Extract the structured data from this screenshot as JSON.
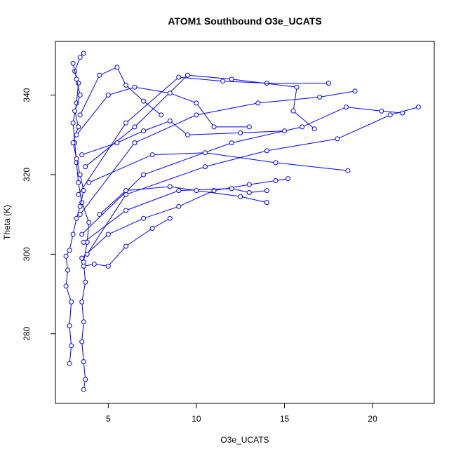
{
  "chart_data": {
    "type": "scatter",
    "title": "ATOM1 Southbound O3e_UCATS",
    "xlabel": "O3e_UCATS",
    "ylabel": "Theta (K)",
    "xlim": [
      2.0,
      23.5
    ],
    "ylim": [
      262.5,
      353.5
    ],
    "xticks": [
      5,
      10,
      15,
      20
    ],
    "yticks": [
      280,
      300,
      320,
      340
    ],
    "color": "#0000ff",
    "marker": "open-circle",
    "connected": true,
    "series": [
      {
        "values": [
          {
            "x": 3.6,
            "y": 266.0
          },
          {
            "x": 3.7,
            "y": 268.5
          },
          {
            "x": 3.6,
            "y": 273.0
          },
          {
            "x": 3.5,
            "y": 278.0
          },
          {
            "x": 3.6,
            "y": 283.0
          },
          {
            "x": 3.5,
            "y": 288.0
          },
          {
            "x": 3.7,
            "y": 293.0
          },
          {
            "x": 3.6,
            "y": 298.0
          },
          {
            "x": 3.8,
            "y": 303.0
          },
          {
            "x": 3.9,
            "y": 308.0
          },
          {
            "x": 3.5,
            "y": 313.0
          },
          {
            "x": 3.3,
            "y": 318.0
          },
          {
            "x": 3.2,
            "y": 323.0
          },
          {
            "x": 3.1,
            "y": 328.0
          },
          {
            "x": 3.0,
            "y": 333.0
          },
          {
            "x": 3.2,
            "y": 338.0
          },
          {
            "x": 3.3,
            "y": 343.0
          },
          {
            "x": 3.1,
            "y": 346.0
          },
          {
            "x": 3.4,
            "y": 349.5
          },
          {
            "x": 3.6,
            "y": 350.5
          }
        ]
      },
      {
        "values": [
          {
            "x": 2.8,
            "y": 272.5
          },
          {
            "x": 2.9,
            "y": 277.0
          },
          {
            "x": 2.8,
            "y": 282.0
          },
          {
            "x": 2.9,
            "y": 288.0
          },
          {
            "x": 2.6,
            "y": 292.0
          },
          {
            "x": 2.7,
            "y": 296.0
          },
          {
            "x": 2.6,
            "y": 299.5
          },
          {
            "x": 2.8,
            "y": 301.0
          },
          {
            "x": 3.0,
            "y": 305.0
          },
          {
            "x": 3.2,
            "y": 309.0
          },
          {
            "x": 3.4,
            "y": 312.0
          },
          {
            "x": 3.6,
            "y": 316.0
          },
          {
            "x": 3.4,
            "y": 320.0
          },
          {
            "x": 3.2,
            "y": 324.0
          },
          {
            "x": 3.0,
            "y": 328.0
          },
          {
            "x": 3.3,
            "y": 332.0
          },
          {
            "x": 3.1,
            "y": 336.0
          },
          {
            "x": 3.4,
            "y": 340.0
          },
          {
            "x": 3.2,
            "y": 344.0
          },
          {
            "x": 3.0,
            "y": 348.0
          }
        ]
      },
      {
        "values": [
          {
            "x": 3.5,
            "y": 299.0
          },
          {
            "x": 5.0,
            "y": 305.0
          },
          {
            "x": 7.0,
            "y": 309.0
          },
          {
            "x": 9.0,
            "y": 312.0
          },
          {
            "x": 11.0,
            "y": 316.0
          },
          {
            "x": 13.0,
            "y": 317.5
          },
          {
            "x": 14.5,
            "y": 318.5
          },
          {
            "x": 15.2,
            "y": 319.0
          }
        ]
      },
      {
        "values": [
          {
            "x": 3.6,
            "y": 303.0
          },
          {
            "x": 6.0,
            "y": 311.0
          },
          {
            "x": 9.0,
            "y": 316.0
          },
          {
            "x": 12.0,
            "y": 316.5
          },
          {
            "x": 13.0,
            "y": 315.5
          },
          {
            "x": 14.0,
            "y": 316.0
          }
        ]
      },
      {
        "values": [
          {
            "x": 3.8,
            "y": 300.0
          },
          {
            "x": 6.0,
            "y": 315.0
          },
          {
            "x": 10.5,
            "y": 322.0
          },
          {
            "x": 14.0,
            "y": 326.0
          },
          {
            "x": 18.0,
            "y": 329.0
          },
          {
            "x": 21.0,
            "y": 335.0
          },
          {
            "x": 22.6,
            "y": 337.0
          }
        ]
      },
      {
        "values": [
          {
            "x": 3.5,
            "y": 305.0
          },
          {
            "x": 7.0,
            "y": 320.0
          },
          {
            "x": 12.0,
            "y": 328.0
          },
          {
            "x": 16.0,
            "y": 332.0
          },
          {
            "x": 18.5,
            "y": 337.0
          },
          {
            "x": 20.5,
            "y": 336.0
          },
          {
            "x": 21.7,
            "y": 335.5
          }
        ]
      },
      {
        "values": [
          {
            "x": 3.4,
            "y": 310.0
          },
          {
            "x": 6.5,
            "y": 328.0
          },
          {
            "x": 10.0,
            "y": 335.0
          },
          {
            "x": 13.5,
            "y": 338.0
          },
          {
            "x": 17.0,
            "y": 339.5
          },
          {
            "x": 19.0,
            "y": 341.0
          }
        ]
      },
      {
        "values": [
          {
            "x": 3.3,
            "y": 315.0
          },
          {
            "x": 6.0,
            "y": 333.0
          },
          {
            "x": 9.0,
            "y": 344.5
          },
          {
            "x": 11.5,
            "y": 343.5
          },
          {
            "x": 14.0,
            "y": 343.0
          },
          {
            "x": 17.5,
            "y": 343.0
          }
        ]
      },
      {
        "values": [
          {
            "x": 3.9,
            "y": 318.0
          },
          {
            "x": 7.5,
            "y": 325.0
          },
          {
            "x": 10.5,
            "y": 325.5
          },
          {
            "x": 14.5,
            "y": 323.0
          },
          {
            "x": 18.6,
            "y": 321.0
          }
        ]
      },
      {
        "values": [
          {
            "x": 4.5,
            "y": 310.0
          },
          {
            "x": 6.0,
            "y": 316.0
          },
          {
            "x": 8.5,
            "y": 317.0
          },
          {
            "x": 10.0,
            "y": 316.0
          },
          {
            "x": 12.5,
            "y": 314.5
          },
          {
            "x": 14.0,
            "y": 313.0
          }
        ]
      },
      {
        "values": [
          {
            "x": 3.7,
            "y": 322.0
          },
          {
            "x": 6.5,
            "y": 332.0
          },
          {
            "x": 9.5,
            "y": 345.0
          },
          {
            "x": 12.0,
            "y": 344.0
          },
          {
            "x": 15.7,
            "y": 342.0
          },
          {
            "x": 15.5,
            "y": 336.0
          },
          {
            "x": 16.7,
            "y": 331.5
          }
        ]
      },
      {
        "values": [
          {
            "x": 3.2,
            "y": 330.0
          },
          {
            "x": 5.0,
            "y": 340.0
          },
          {
            "x": 6.5,
            "y": 342.0
          },
          {
            "x": 8.5,
            "y": 340.5
          },
          {
            "x": 10.0,
            "y": 338.0
          },
          {
            "x": 11.0,
            "y": 332.0
          },
          {
            "x": 13.0,
            "y": 332.0
          }
        ]
      },
      {
        "values": [
          {
            "x": 3.5,
            "y": 325.0
          },
          {
            "x": 5.5,
            "y": 328.0
          },
          {
            "x": 7.0,
            "y": 331.0
          },
          {
            "x": 8.5,
            "y": 333.5
          },
          {
            "x": 9.5,
            "y": 330.0
          },
          {
            "x": 12.5,
            "y": 330.5
          },
          {
            "x": 15.0,
            "y": 331.0
          }
        ]
      },
      {
        "values": [
          {
            "x": 3.6,
            "y": 297.0
          },
          {
            "x": 4.2,
            "y": 297.5
          },
          {
            "x": 5.0,
            "y": 297.0
          },
          {
            "x": 6.0,
            "y": 302.0
          },
          {
            "x": 7.5,
            "y": 306.5
          },
          {
            "x": 8.5,
            "y": 309.0
          }
        ]
      },
      {
        "values": [
          {
            "x": 3.4,
            "y": 335.0
          },
          {
            "x": 4.5,
            "y": 345.0
          },
          {
            "x": 5.5,
            "y": 347.0
          },
          {
            "x": 6.0,
            "y": 342.5
          },
          {
            "x": 7.0,
            "y": 338.5
          },
          {
            "x": 8.0,
            "y": 335.0
          }
        ]
      }
    ]
  }
}
